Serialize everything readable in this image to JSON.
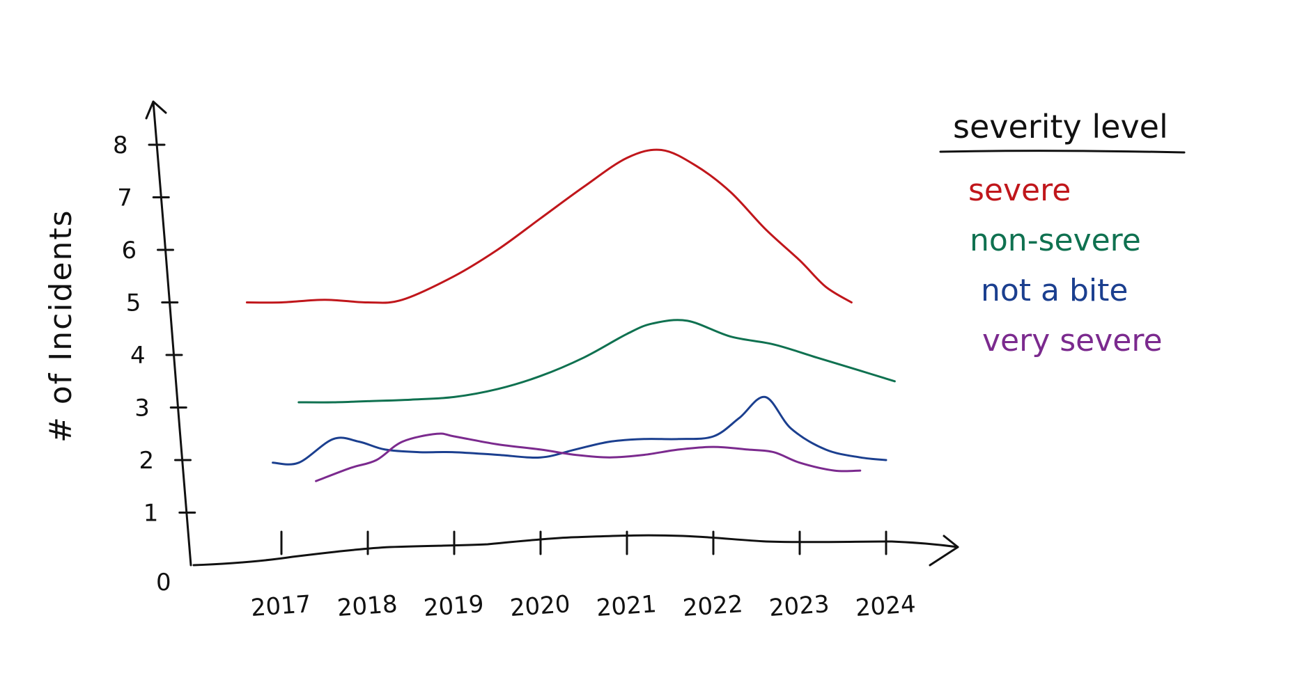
{
  "chart_data": {
    "type": "line",
    "xlabel": "",
    "ylabel": "# of Incidents",
    "x": [
      2017,
      2018,
      2019,
      2020,
      2021,
      2022,
      2023,
      2024
    ],
    "y_ticks": [
      "0",
      "1",
      "2",
      "3",
      "4",
      "5",
      "6",
      "7",
      "8"
    ],
    "ylim": [
      0,
      8
    ],
    "legend_title": "severity level",
    "legend_position": "right",
    "grid": false,
    "series": [
      {
        "name": "severe",
        "color": "#c0161b",
        "points": [
          [
            2016.6,
            5.0
          ],
          [
            2017.0,
            5.0
          ],
          [
            2017.5,
            5.05
          ],
          [
            2018.0,
            5.0
          ],
          [
            2018.4,
            5.05
          ],
          [
            2019.0,
            5.5
          ],
          [
            2019.5,
            6.0
          ],
          [
            2020.0,
            6.6
          ],
          [
            2020.5,
            7.2
          ],
          [
            2021.0,
            7.75
          ],
          [
            2021.4,
            7.9
          ],
          [
            2021.8,
            7.6
          ],
          [
            2022.2,
            7.1
          ],
          [
            2022.6,
            6.4
          ],
          [
            2023.0,
            5.8
          ],
          [
            2023.3,
            5.3
          ],
          [
            2023.6,
            5.0
          ]
        ]
      },
      {
        "name": "non-severe",
        "color": "#0f7150",
        "points": [
          [
            2017.2,
            3.1
          ],
          [
            2017.6,
            3.1
          ],
          [
            2018.0,
            3.12
          ],
          [
            2018.5,
            3.15
          ],
          [
            2019.0,
            3.2
          ],
          [
            2019.5,
            3.35
          ],
          [
            2020.0,
            3.6
          ],
          [
            2020.5,
            3.95
          ],
          [
            2021.0,
            4.4
          ],
          [
            2021.3,
            4.6
          ],
          [
            2021.7,
            4.65
          ],
          [
            2022.2,
            4.35
          ],
          [
            2022.7,
            4.2
          ],
          [
            2023.2,
            3.95
          ],
          [
            2023.7,
            3.7
          ],
          [
            2024.1,
            3.5
          ]
        ]
      },
      {
        "name": "not a bite",
        "color": "#1b3f8f",
        "points": [
          [
            2016.9,
            1.95
          ],
          [
            2017.2,
            1.95
          ],
          [
            2017.6,
            2.4
          ],
          [
            2017.9,
            2.35
          ],
          [
            2018.2,
            2.2
          ],
          [
            2018.6,
            2.15
          ],
          [
            2019.0,
            2.15
          ],
          [
            2019.5,
            2.1
          ],
          [
            2020.0,
            2.05
          ],
          [
            2020.4,
            2.2
          ],
          [
            2020.8,
            2.35
          ],
          [
            2021.2,
            2.4
          ],
          [
            2021.6,
            2.4
          ],
          [
            2022.0,
            2.45
          ],
          [
            2022.3,
            2.8
          ],
          [
            2022.6,
            3.2
          ],
          [
            2022.9,
            2.6
          ],
          [
            2023.3,
            2.2
          ],
          [
            2023.7,
            2.05
          ],
          [
            2024.0,
            2.0
          ]
        ]
      },
      {
        "name": "very severe",
        "color": "#7b2a8e",
        "points": [
          [
            2017.4,
            1.6
          ],
          [
            2017.8,
            1.85
          ],
          [
            2018.1,
            2.0
          ],
          [
            2018.4,
            2.35
          ],
          [
            2018.8,
            2.5
          ],
          [
            2019.0,
            2.45
          ],
          [
            2019.5,
            2.3
          ],
          [
            2020.0,
            2.2
          ],
          [
            2020.4,
            2.1
          ],
          [
            2020.8,
            2.05
          ],
          [
            2021.2,
            2.1
          ],
          [
            2021.6,
            2.2
          ],
          [
            2022.0,
            2.25
          ],
          [
            2022.4,
            2.2
          ],
          [
            2022.7,
            2.15
          ],
          [
            2023.0,
            1.95
          ],
          [
            2023.4,
            1.8
          ],
          [
            2023.7,
            1.8
          ]
        ]
      }
    ]
  }
}
